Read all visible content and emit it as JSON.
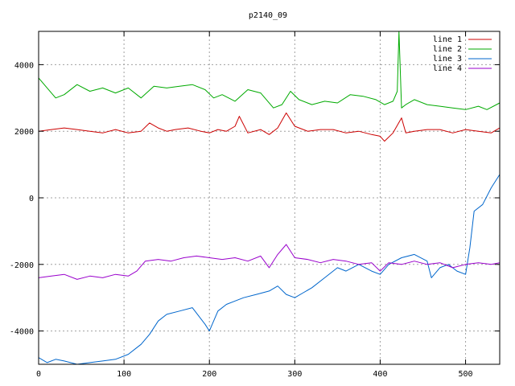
{
  "chart_data": {
    "type": "line",
    "title": "p2140_09",
    "xlabel": "",
    "ylabel": "",
    "xlim": [
      0,
      540
    ],
    "ylim": [
      -5000,
      5000
    ],
    "xticks": [
      0,
      100,
      200,
      300,
      400,
      500
    ],
    "yticks": [
      -4000,
      -2000,
      0,
      2000,
      4000
    ],
    "grid": true,
    "legend_position": "top-right",
    "series": [
      {
        "name": "line 1",
        "color": "#cc0000",
        "x": [
          0,
          15,
          30,
          45,
          60,
          75,
          90,
          105,
          120,
          130,
          140,
          150,
          160,
          175,
          190,
          200,
          210,
          220,
          230,
          235,
          245,
          260,
          270,
          280,
          290,
          300,
          315,
          330,
          345,
          360,
          375,
          390,
          400,
          405,
          415,
          425,
          430,
          440,
          455,
          470,
          485,
          500,
          515,
          530,
          540
        ],
        "y": [
          2000,
          2050,
          2100,
          2050,
          2000,
          1950,
          2050,
          1950,
          2000,
          2250,
          2100,
          2000,
          2050,
          2100,
          2000,
          1950,
          2050,
          2000,
          2150,
          2450,
          1950,
          2050,
          1900,
          2100,
          2550,
          2150,
          2000,
          2050,
          2050,
          1950,
          2000,
          1900,
          1850,
          1700,
          1950,
          2400,
          1950,
          2000,
          2050,
          2050,
          1950,
          2050,
          2000,
          1950,
          2100
        ]
      },
      {
        "name": "line 2",
        "color": "#00aa00",
        "x": [
          0,
          10,
          20,
          30,
          45,
          60,
          75,
          90,
          105,
          120,
          135,
          150,
          165,
          180,
          195,
          205,
          215,
          230,
          245,
          260,
          275,
          285,
          295,
          305,
          320,
          335,
          350,
          365,
          380,
          395,
          405,
          415,
          420,
          422,
          425,
          430,
          440,
          455,
          470,
          485,
          500,
          515,
          525,
          540
        ],
        "y": [
          3600,
          3300,
          3000,
          3100,
          3400,
          3200,
          3300,
          3150,
          3300,
          3000,
          3350,
          3300,
          3350,
          3400,
          3250,
          3000,
          3100,
          2900,
          3250,
          3150,
          2700,
          2800,
          3200,
          2950,
          2800,
          2900,
          2850,
          3100,
          3050,
          2950,
          2800,
          2900,
          3200,
          5000,
          2700,
          2800,
          2950,
          2800,
          2750,
          2700,
          2650,
          2750,
          2650,
          2850
        ]
      },
      {
        "name": "line 3",
        "color": "#0066cc",
        "x": [
          0,
          10,
          20,
          30,
          45,
          60,
          75,
          90,
          105,
          115,
          120,
          130,
          140,
          150,
          165,
          180,
          195,
          200,
          210,
          220,
          230,
          240,
          255,
          270,
          280,
          290,
          300,
          310,
          320,
          335,
          350,
          360,
          375,
          390,
          400,
          410,
          425,
          440,
          455,
          460,
          470,
          480,
          490,
          500,
          505,
          510,
          520,
          530,
          540
        ],
        "y": [
          -4800,
          -4950,
          -4850,
          -4900,
          -5000,
          -4950,
          -4900,
          -4850,
          -4700,
          -4500,
          -4400,
          -4100,
          -3700,
          -3500,
          -3400,
          -3300,
          -3800,
          -4000,
          -3400,
          -3200,
          -3100,
          -3000,
          -2900,
          -2800,
          -2650,
          -2900,
          -3000,
          -2850,
          -2700,
          -2400,
          -2100,
          -2200,
          -2000,
          -2200,
          -2300,
          -2000,
          -1800,
          -1700,
          -1900,
          -2400,
          -2100,
          -2000,
          -2200,
          -2300,
          -1500,
          -400,
          -200,
          300,
          700
        ]
      },
      {
        "name": "line 4",
        "color": "#9900cc",
        "x": [
          0,
          15,
          30,
          45,
          60,
          75,
          90,
          105,
          115,
          125,
          140,
          155,
          170,
          185,
          200,
          215,
          230,
          245,
          260,
          270,
          280,
          290,
          300,
          315,
          330,
          345,
          360,
          375,
          390,
          400,
          410,
          425,
          440,
          455,
          470,
          485,
          500,
          515,
          530,
          540
        ],
        "y": [
          -2400,
          -2350,
          -2300,
          -2450,
          -2350,
          -2400,
          -2300,
          -2350,
          -2200,
          -1900,
          -1850,
          -1900,
          -1800,
          -1750,
          -1800,
          -1850,
          -1800,
          -1900,
          -1750,
          -2100,
          -1700,
          -1400,
          -1800,
          -1850,
          -1950,
          -1850,
          -1900,
          -2000,
          -1950,
          -2200,
          -1950,
          -2000,
          -1900,
          -2000,
          -1950,
          -2100,
          -2000,
          -1950,
          -2000,
          -1950
        ]
      }
    ]
  }
}
